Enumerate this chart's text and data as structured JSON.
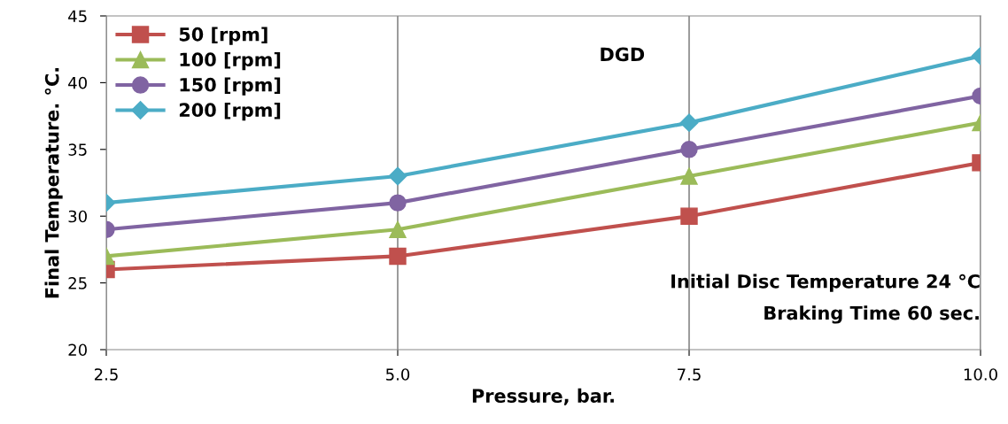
{
  "chart_data": {
    "type": "line",
    "xlabel": "Pressure, bar.",
    "ylabel": "Final Temperature. °C.",
    "x": [
      2.5,
      5.0,
      7.5,
      10.0
    ],
    "series": [
      {
        "name": "50 [rpm]",
        "color": "#c0504d",
        "marker": "square",
        "values": [
          26,
          27,
          30,
          34
        ]
      },
      {
        "name": "100 [rpm]",
        "color": "#9bbb59",
        "marker": "triangle",
        "values": [
          27,
          29,
          33,
          37
        ]
      },
      {
        "name": "150 [rpm]",
        "color": "#8064a2",
        "marker": "circle",
        "values": [
          29,
          31,
          35,
          39
        ]
      },
      {
        "name": "200 [rpm]",
        "color": "#4bacc6",
        "marker": "diamond",
        "values": [
          31,
          33,
          37,
          42
        ]
      }
    ],
    "xlim": [
      2.5,
      10.0
    ],
    "xticks": [
      {
        "value": 2.5,
        "label": "2.5"
      },
      {
        "value": 5.0,
        "label": "5.0"
      },
      {
        "value": 7.5,
        "label": "7.5"
      },
      {
        "value": 10.0,
        "label": "10.0"
      }
    ],
    "ylim": [
      20,
      45
    ],
    "yticks": [
      20,
      25,
      30,
      35,
      40,
      45
    ],
    "grid": "x",
    "legend": "top left",
    "line_style": "solid",
    "annotations": [
      "DGD",
      "Initial Disc Temperature 24 °C",
      "Braking Time 60 sec."
    ]
  }
}
